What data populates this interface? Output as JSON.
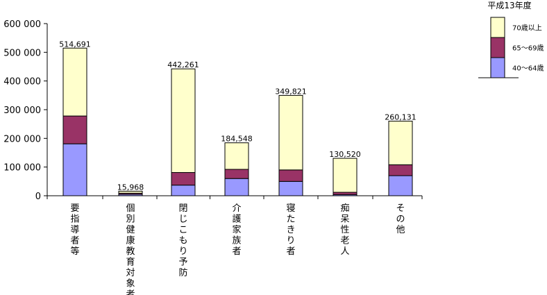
{
  "chart_data": {
    "type": "bar",
    "stacked": true,
    "title": "平成13年度",
    "categories": [
      "要指導者等",
      "個別健康教育対象者",
      "閉じこもり予防",
      "介護家族者",
      "寝たきり者",
      "痴呆性老人",
      "その他"
    ],
    "series": [
      {
        "name": "40～64歳",
        "color": "#9999ff",
        "values": [
          181000,
          5000,
          37000,
          60000,
          50000,
          4000,
          70000
        ]
      },
      {
        "name": "65～69歳",
        "color": "#993366",
        "values": [
          97000,
          4000,
          44000,
          32000,
          40000,
          8000,
          38000
        ]
      },
      {
        "name": "70歳以上",
        "color": "#ffffcc",
        "values": [
          236691,
          6968,
          361261,
          92548,
          259821,
          118520,
          152131
        ]
      }
    ],
    "totals": [
      "514,691",
      "15,968",
      "442,261",
      "184,548",
      "349,821",
      "130,520",
      "260,131"
    ],
    "ylim": [
      0,
      600000
    ],
    "yticks": [
      0,
      100000,
      200000,
      300000,
      400000,
      500000,
      600000
    ],
    "ytick_labels": [
      "0",
      "100 000",
      "200 000",
      "300 000",
      "400 000",
      "500 000",
      "600 000"
    ],
    "legend": {
      "position": "top-right",
      "order": [
        "70歳以上",
        "65～69歳",
        "40～64歳"
      ]
    },
    "grid": false
  }
}
